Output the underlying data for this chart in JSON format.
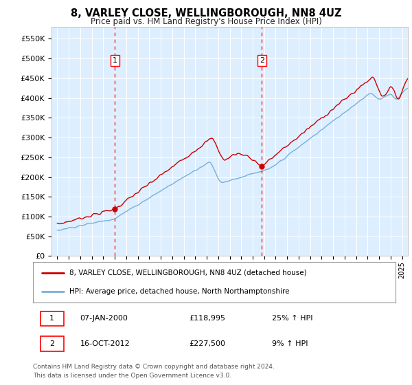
{
  "title": "8, VARLEY CLOSE, WELLINGBOROUGH, NN8 4UZ",
  "subtitle": "Price paid vs. HM Land Registry's House Price Index (HPI)",
  "ylabel_ticks": [
    "£0",
    "£50K",
    "£100K",
    "£150K",
    "£200K",
    "£250K",
    "£300K",
    "£350K",
    "£400K",
    "£450K",
    "£500K",
    "£550K"
  ],
  "ylim": [
    0,
    580000
  ],
  "xlim_start": 1994.5,
  "xlim_end": 2025.5,
  "red_line_color": "#cc0000",
  "blue_line_color": "#7ab0d4",
  "background_color": "#ddeeff",
  "sale1": {
    "year": 2000.02,
    "price": 118995,
    "label": "1",
    "date": "07-JAN-2000",
    "hpi_pct": "25% ↑ HPI"
  },
  "sale2": {
    "year": 2012.79,
    "price": 227500,
    "label": "2",
    "date": "16-OCT-2012",
    "hpi_pct": "9% ↑ HPI"
  },
  "legend_label_red": "8, VARLEY CLOSE, WELLINGBOROUGH, NN8 4UZ (detached house)",
  "legend_label_blue": "HPI: Average price, detached house, North Northamptonshire",
  "footnote": "Contains HM Land Registry data © Crown copyright and database right 2024.\nThis data is licensed under the Open Government Licence v3.0.",
  "xtick_years": [
    1995,
    1996,
    1997,
    1998,
    1999,
    2000,
    2001,
    2002,
    2003,
    2004,
    2005,
    2006,
    2007,
    2008,
    2009,
    2010,
    2011,
    2012,
    2013,
    2014,
    2015,
    2016,
    2017,
    2018,
    2019,
    2020,
    2021,
    2022,
    2023,
    2024,
    2025
  ]
}
